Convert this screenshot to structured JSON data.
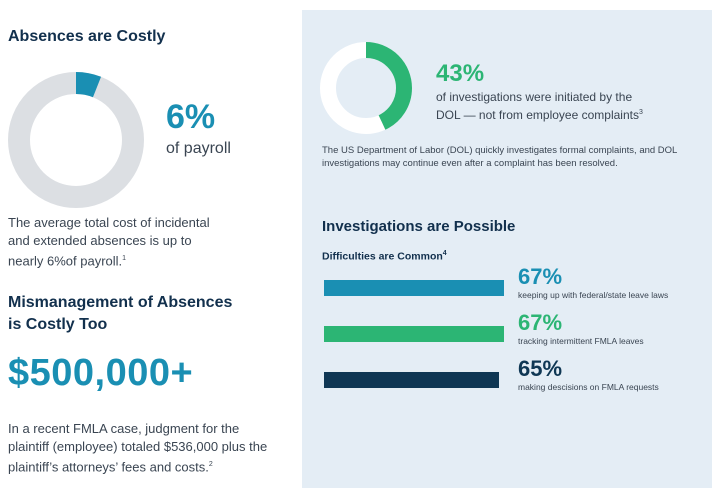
{
  "colors": {
    "teal": "#1a8fb3",
    "green": "#2cb574",
    "navy": "#0f3754",
    "ring_bg_left": "#dcdfe3",
    "ring_bg_right": "#ffffff"
  },
  "left": {
    "title": "Absences are Costly",
    "pct": "6%",
    "pct_label": "of payroll",
    "desc_lines": [
      "The average total cost of incidental",
      "and extended absences is up to",
      "nearly 6%of payroll."
    ],
    "desc_sup": "1",
    "title2_lines": [
      "Mismanagement of Absences",
      "is Costly Too"
    ],
    "big_dollar": "$500,000+",
    "case_lines": [
      "In a recent FMLA case, judgment for the",
      "plaintiff (employee) totaled $536,000 plus the",
      "plaintiff’s attorneys’ fees and costs."
    ],
    "case_sup": "2"
  },
  "right": {
    "pct": "43%",
    "label_lines": [
      "of investigations were initiated by the",
      "DOL — not from employee complaints"
    ],
    "label_sup": "3",
    "note_lines": [
      "The US Department of Labor (DOL) quickly investigates formal complaints, and DOL",
      "investigations may continue even after a complaint has been resolved."
    ],
    "title": "Investigations are Possible",
    "subtitle": "Difficulties are Common",
    "subtitle_sup": "4"
  },
  "chart_data": [
    {
      "type": "pie",
      "title": "",
      "values": [
        6,
        94
      ],
      "colors": [
        "#1a8fb3",
        "#dcdfe3"
      ]
    },
    {
      "type": "pie",
      "title": "",
      "values": [
        43,
        57
      ],
      "colors": [
        "#2cb574",
        "#ffffff"
      ]
    },
    {
      "type": "bar",
      "title": "",
      "categories": [
        "keeping up with federal/state leave laws",
        "tracking  intermittent FMLA  leaves",
        "making descisions on FMLA requests"
      ],
      "values": [
        67,
        67,
        65
      ],
      "value_labels": [
        "67%",
        "67%",
        "65%"
      ],
      "colors": [
        "#1a8fb3",
        "#2cb574",
        "#0f3754"
      ],
      "ylim": [
        0,
        100
      ]
    }
  ]
}
